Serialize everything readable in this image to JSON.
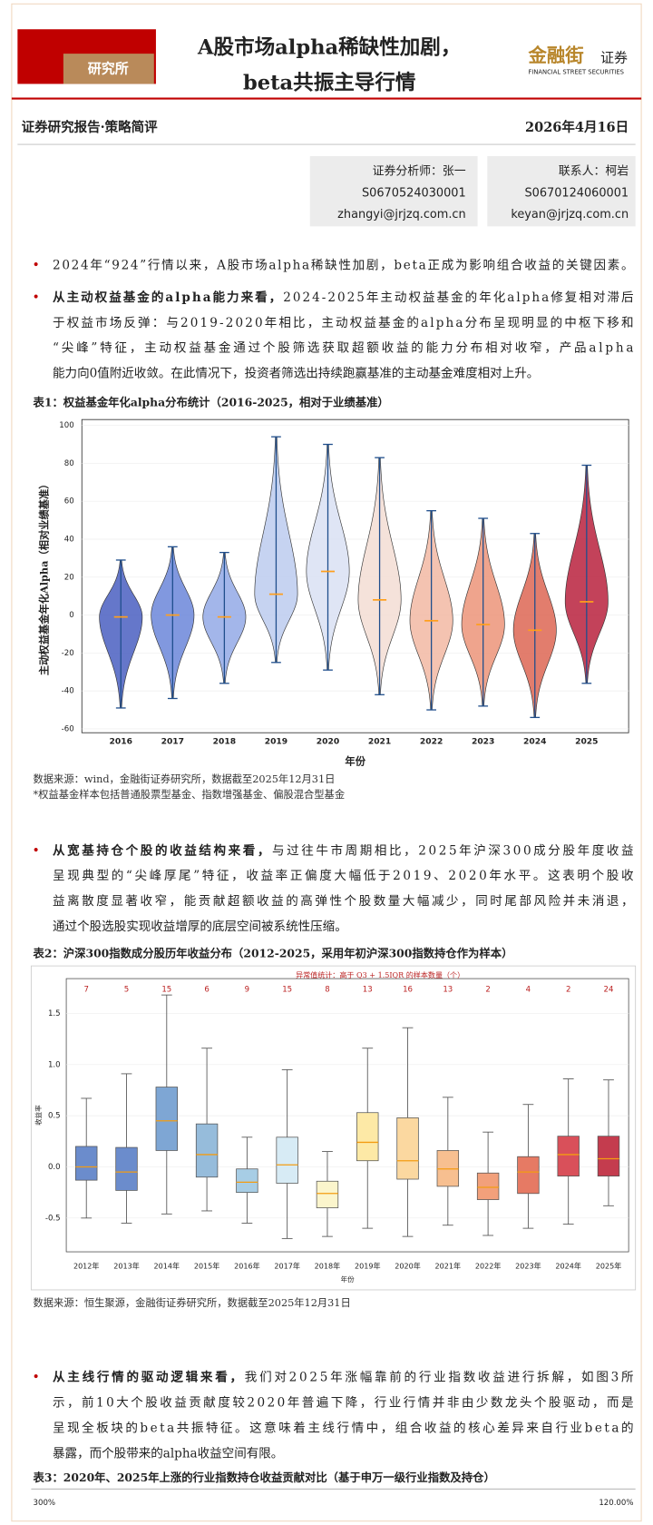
{
  "header": {
    "label": "研究所",
    "title": [
      "A股市场alpha稀缺性加剧，",
      "beta共振主导行情"
    ],
    "logo_cn": "金融街",
    "logo_suffix": "证券",
    "logo_en": "FINANCIAL STREET SECURITIES"
  },
  "meta": {
    "report_type": "证券研究报告·策略简评",
    "date": "2026年4月16日"
  },
  "analysts": [
    [
      "证券分析师：张一",
      "S0670524030001",
      "zhangyi@jrjzq.com.cn"
    ],
    [
      "联系人：柯岩",
      "S0670124060001",
      "keyan@jrjzq.com.cn"
    ]
  ],
  "paragraphs": [
    {
      "lines": [
        "2024年“924”行情以来，A股市场alpha稀缺性加剧，beta正成为影响组合收益的关键因素。"
      ]
    },
    {
      "lead": "从主动权益基金的alpha能力来看，",
      "lines": [
        "2024-2025年主动权益基金的年化alpha修复相对滞后",
        "于权益市场反弹：与2019-2020年相比，主动权益基金的alpha分布呈现明显的中枢下移和",
        "“尖峰”特征，主动权益基金通过个股筛选获取超额收益的能力分布相对收窄，产品alpha",
        "能力向0值附近收敛。在此情况下，投资者筛选出持续跑赢基准的主动基金难度相对上升。"
      ]
    },
    {
      "lead": "从宽基持仓个股的收益结构来看，",
      "lines": [
        "与过往牛市周期相比，2025年沪深300成分股年度收益",
        "呈现典型的“尖峰厚尾”特征，收益率正偏度大幅低于2019、2020年水平。这表明个股收",
        "益离散度显著收窄，能贡献超额收益的高弹性个股数量大幅减少，同时尾部风险并未消退，",
        "通过个股选股实现收益增厚的底层空间被系统性压缩。"
      ]
    },
    {
      "lead": "从主线行情的驱动逻辑来看，",
      "lines": [
        "我们对2025年涨幅靠前的行业指数收益进行拆解，如图3所",
        "示，前10大个股收益贡献度较2020年普遍下降，行业行情并非由少数龙头个股驱动，而是",
        "呈现全板块的beta共振特征。这意味着主线行情中，组合收益的核心差异来自行业beta的",
        "暴露，而个股带来的alpha收益空间有限。"
      ]
    }
  ],
  "sources": [
    "数据来源：wind，金融街证券研究所，数据截至2025年12月31日",
    "*权益基金样本包括普通股票型基金、指数增强基金、偏股混合型基金",
    "数据来源：恒生聚源，金融街证券研究所，数据截至2025年12月31日"
  ],
  "chart_data": [
    {
      "type": "violin",
      "title": "表1：权益基金年化alpha分布统计（2016-2025，相对于业绩基准）",
      "xlabel": "年份",
      "ylabel": "主动权益基金年化Alpha（相对业绩基准）",
      "categories": [
        "2016",
        "2017",
        "2018",
        "2019",
        "2020",
        "2021",
        "2022",
        "2023",
        "2024",
        "2025"
      ],
      "max": [
        29,
        36,
        33,
        94,
        90,
        83,
        55,
        51,
        43,
        79
      ],
      "min": [
        -49,
        -44,
        -36,
        -25,
        -29,
        -42,
        -50,
        -48,
        -54,
        -36
      ],
      "median": [
        -1,
        0,
        -1,
        11,
        23,
        8,
        -3,
        -5,
        -8,
        7
      ],
      "colors": [
        "#4a5fc1",
        "#6b86d9",
        "#93a9e6",
        "#bccbef",
        "#d9e1f3",
        "#f3ddd3",
        "#f2b9a3",
        "#ec9479",
        "#dd6654",
        "#b8213d"
      ],
      "median_color": "#ff9f1c",
      "ylim": [
        -60,
        100
      ],
      "yticks": [
        -60,
        -40,
        -20,
        0,
        20,
        40,
        60,
        80,
        100
      ],
      "grid": true
    },
    {
      "type": "box",
      "title": "表2：沪深300指数成分股历年收益分布（2012-2025，采用年初沪深300指数持仓作为样本）",
      "annotation": "异常值统计：高于 Q3 + 1.5IQR 的样本数量（个）",
      "outlier_counts": [
        7,
        5,
        15,
        6,
        9,
        15,
        8,
        13,
        16,
        13,
        2,
        4,
        2,
        24
      ],
      "xlabel": "年份",
      "ylabel": "收益率",
      "categories": [
        "2012年",
        "2013年",
        "2014年",
        "2015年",
        "2016年",
        "2017年",
        "2018年",
        "2019年",
        "2020年",
        "2021年",
        "2022年",
        "2023年",
        "2024年",
        "2025年"
      ],
      "whisker_low": [
        -0.5,
        -0.55,
        -0.46,
        -0.43,
        -0.55,
        -0.7,
        -0.68,
        -0.6,
        -0.68,
        -0.57,
        -0.67,
        -0.6,
        -0.56,
        -0.38
      ],
      "q1": [
        -0.13,
        -0.23,
        0.16,
        -0.1,
        -0.25,
        -0.16,
        -0.4,
        0.06,
        -0.12,
        -0.19,
        -0.32,
        -0.26,
        -0.09,
        -0.09
      ],
      "median": [
        0.0,
        -0.05,
        0.45,
        0.12,
        -0.15,
        0.02,
        -0.26,
        0.24,
        0.06,
        -0.02,
        -0.2,
        -0.05,
        0.12,
        0.08
      ],
      "q3": [
        0.2,
        0.19,
        0.78,
        0.42,
        -0.02,
        0.29,
        -0.14,
        0.53,
        0.48,
        0.16,
        -0.06,
        0.1,
        0.3,
        0.3
      ],
      "whisker_high": [
        0.67,
        0.91,
        1.68,
        1.16,
        0.29,
        0.95,
        0.15,
        1.16,
        1.36,
        0.68,
        0.34,
        0.61,
        0.86,
        0.85
      ],
      "colors": [
        "#6b8ccc",
        "#6b8ccc",
        "#7ea6d4",
        "#96bcdb",
        "#a7cde5",
        "#d7ebf5",
        "#fbf5cc",
        "#fde9a6",
        "#fbd8a0",
        "#f7bf90",
        "#f2a07b",
        "#e67a64",
        "#d9505a",
        "#c43c4e"
      ],
      "median_color": "#f39c12",
      "ylim": [
        -0.83,
        1.84
      ],
      "yticks": [
        -0.5,
        {
          "value": 0,
          "label": "0.0"
        },
        0.5,
        {
          "value": 1,
          "label": "1.0"
        },
        1.5
      ],
      "grid": true
    },
    {
      "type": "bar",
      "title": "表3：2020年、2025年上涨的行业指数持仓收益贡献对比（基于申万一级行业指数及持仓）",
      "yticks": [
        {
          "value": 300,
          "label": "300%"
        }
      ],
      "y2ticks": [
        {
          "value": 120,
          "label": "120.00%"
        }
      ]
    }
  ]
}
